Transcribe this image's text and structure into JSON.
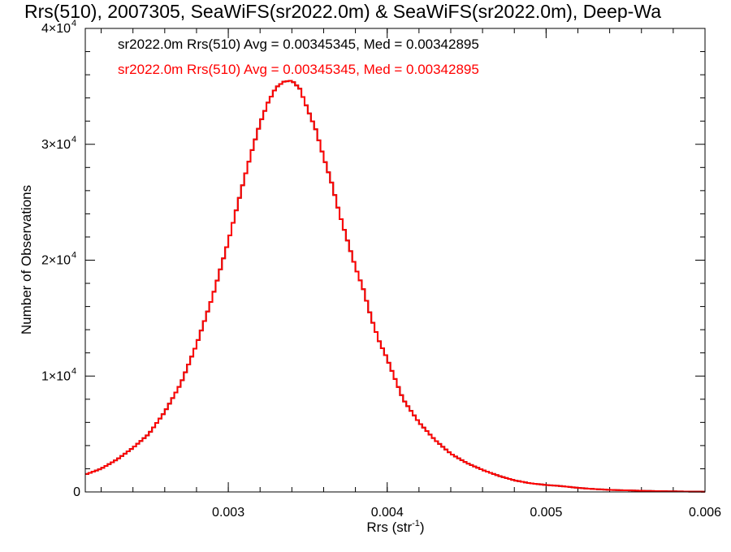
{
  "chart_data": {
    "type": "line",
    "title": "Rrs(510), 2007305, SeaWiFS(sr2022.0m) & SeaWiFS(sr2022.0m), Deep-Wa",
    "xlabel": "Rrs (str",
    "xlabel_sup": "-1",
    "xlabel_close": ")",
    "ylabel": "Number of Observations",
    "xlim": [
      0.0021,
      0.006
    ],
    "ylim": [
      0,
      40000
    ],
    "x_ticks": [
      0.003,
      0.004,
      0.005,
      0.006
    ],
    "x_tick_labels": [
      "0.003",
      "0.004",
      "0.005",
      "0.006"
    ],
    "y_ticks": [
      {
        "value": 0,
        "label": "0",
        "sup": ""
      },
      {
        "value": 10000,
        "label": "1×10",
        "sup": "4"
      },
      {
        "value": 20000,
        "label": "2×10",
        "sup": "4"
      },
      {
        "value": 30000,
        "label": "3×10",
        "sup": "4"
      },
      {
        "value": 40000,
        "label": "4×10",
        "sup": "4"
      }
    ],
    "grid": false,
    "annotations": [
      {
        "text": "sr2022.0m Rrs(510) Avg = 0.00345345, Med = 0.00342895",
        "color": "#000000"
      },
      {
        "text": "sr2022.0m Rrs(510) Avg = 0.00345345, Med = 0.00342895",
        "color": "#ff0000"
      }
    ],
    "series": [
      {
        "color": "#000000",
        "x": [
          0.0021,
          0.0022,
          0.0023,
          0.0024,
          0.0025,
          0.0026,
          0.0027,
          0.0028,
          0.0029,
          0.003,
          0.00305,
          0.0031,
          0.00315,
          0.0032,
          0.00325,
          0.0033,
          0.00335,
          0.0034,
          0.00345,
          0.0035,
          0.00355,
          0.0036,
          0.00365,
          0.0037,
          0.00375,
          0.0038,
          0.00385,
          0.0039,
          0.00395,
          0.004,
          0.0041,
          0.0042,
          0.0043,
          0.0044,
          0.0045,
          0.0046,
          0.0047,
          0.0048,
          0.0049,
          0.005,
          0.0051,
          0.0052,
          0.0053,
          0.0054,
          0.0055,
          0.0056,
          0.0057,
          0.0058,
          0.0059,
          0.006
        ],
        "y": [
          1500,
          2000,
          2800,
          3800,
          5000,
          6900,
          9300,
          12700,
          16800,
          21600,
          24300,
          27000,
          29500,
          31800,
          33600,
          34900,
          35400,
          35500,
          34800,
          33000,
          31300,
          28900,
          26700,
          24000,
          21700,
          19400,
          17500,
          15000,
          13000,
          11500,
          8000,
          6000,
          4500,
          3300,
          2500,
          1900,
          1400,
          1000,
          750,
          600,
          500,
          350,
          250,
          180,
          140,
          100,
          70,
          50,
          30,
          20
        ]
      },
      {
        "color": "#ff0000",
        "x": [
          0.0021,
          0.0022,
          0.0023,
          0.0024,
          0.0025,
          0.0026,
          0.0027,
          0.0028,
          0.0029,
          0.003,
          0.00305,
          0.0031,
          0.00315,
          0.0032,
          0.00325,
          0.0033,
          0.00335,
          0.0034,
          0.00345,
          0.0035,
          0.00355,
          0.0036,
          0.00365,
          0.0037,
          0.00375,
          0.0038,
          0.00385,
          0.0039,
          0.00395,
          0.004,
          0.0041,
          0.0042,
          0.0043,
          0.0044,
          0.0045,
          0.0046,
          0.0047,
          0.0048,
          0.0049,
          0.005,
          0.0051,
          0.0052,
          0.0053,
          0.0054,
          0.0055,
          0.0056,
          0.0057,
          0.0058,
          0.0059,
          0.006
        ],
        "y": [
          1500,
          2000,
          2800,
          3800,
          5000,
          6900,
          9300,
          12700,
          16800,
          21600,
          24300,
          27000,
          29500,
          31800,
          33600,
          34900,
          35400,
          35500,
          34800,
          33000,
          31300,
          28900,
          26700,
          24000,
          21700,
          19400,
          17500,
          15000,
          13000,
          11500,
          8000,
          6000,
          4500,
          3300,
          2500,
          1900,
          1400,
          1000,
          750,
          600,
          500,
          350,
          250,
          180,
          140,
          100,
          70,
          50,
          30,
          20
        ]
      }
    ]
  }
}
